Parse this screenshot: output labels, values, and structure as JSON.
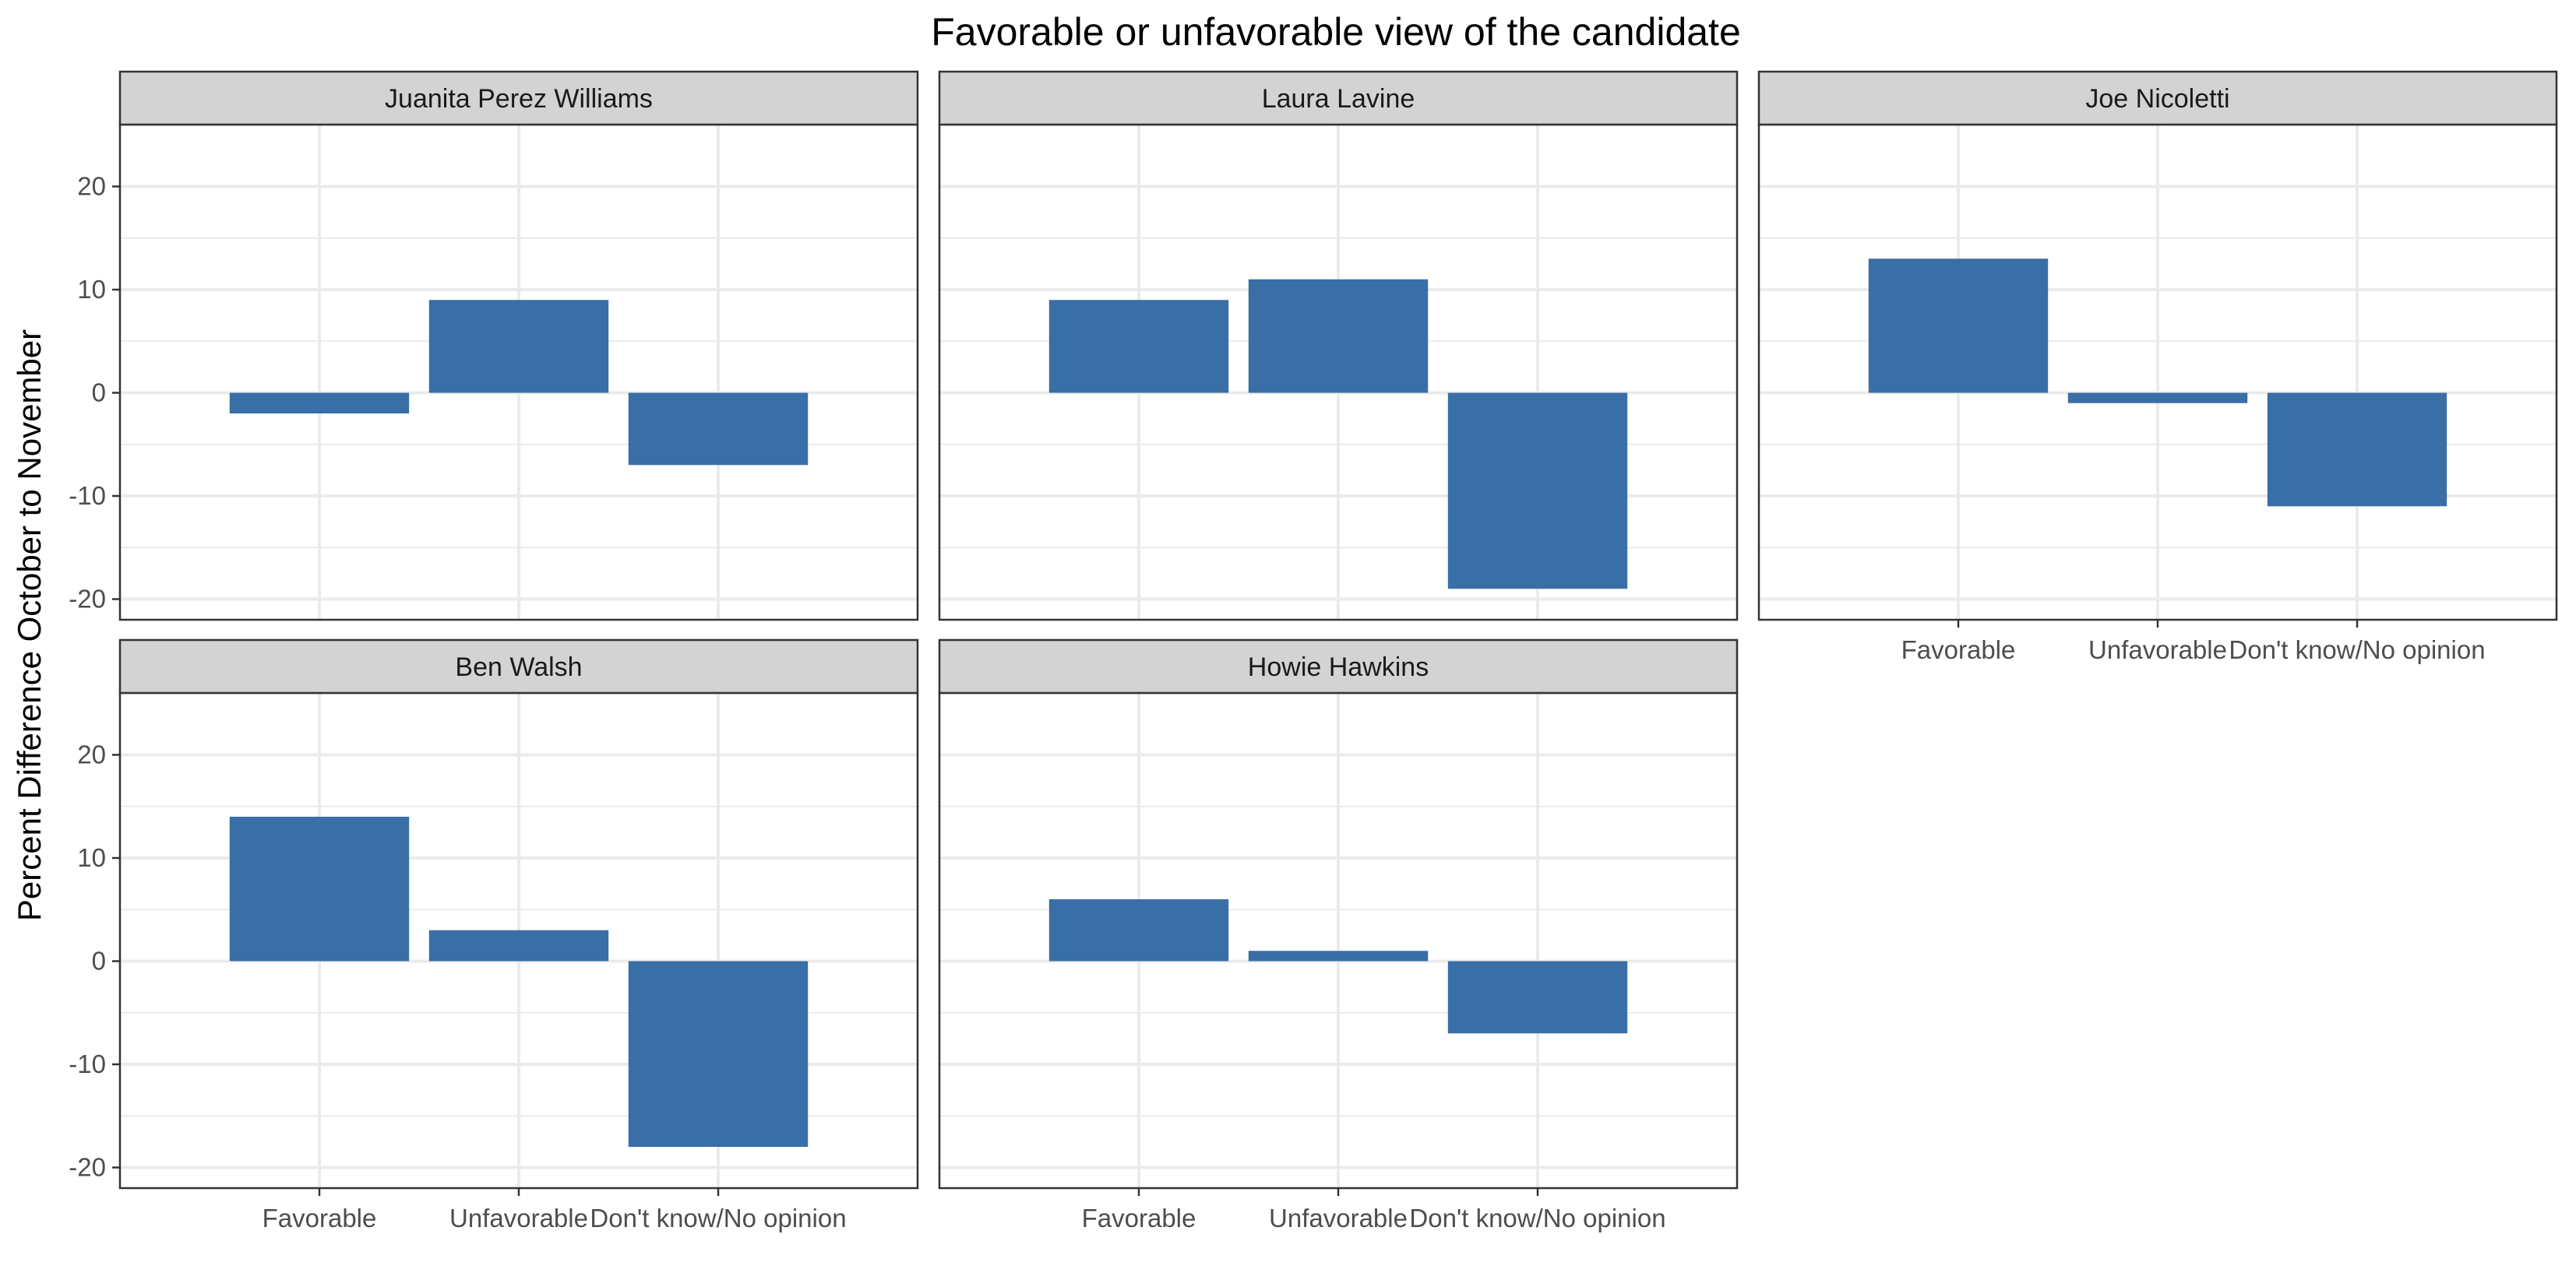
{
  "chart_data": {
    "type": "bar",
    "title": "Favorable or unfavorable view of the candidate",
    "ylabel": "Percent Difference October to November",
    "xlabel": "",
    "categories": [
      "Favorable",
      "Unfavorable",
      "Don't know/No opinion"
    ],
    "ylim": [
      -22,
      26
    ],
    "yticks": [
      -20,
      -10,
      0,
      10,
      20
    ],
    "ytick_labels": [
      "-20",
      "-10",
      "0",
      "10",
      "20"
    ],
    "grid": true,
    "bar_color": "#3a6ea6",
    "strip_color": "#d3d3d3",
    "facets": [
      {
        "name": "Juanita Perez Williams",
        "values": [
          -2,
          9,
          -7
        ]
      },
      {
        "name": "Laura Lavine",
        "values": [
          9,
          11,
          -19
        ]
      },
      {
        "name": "Joe Nicoletti",
        "values": [
          13,
          -1,
          -11
        ]
      },
      {
        "name": "Ben Walsh",
        "values": [
          14,
          3,
          -18
        ]
      },
      {
        "name": "Howie Hawkins",
        "values": [
          6,
          1,
          -7
        ]
      }
    ]
  }
}
